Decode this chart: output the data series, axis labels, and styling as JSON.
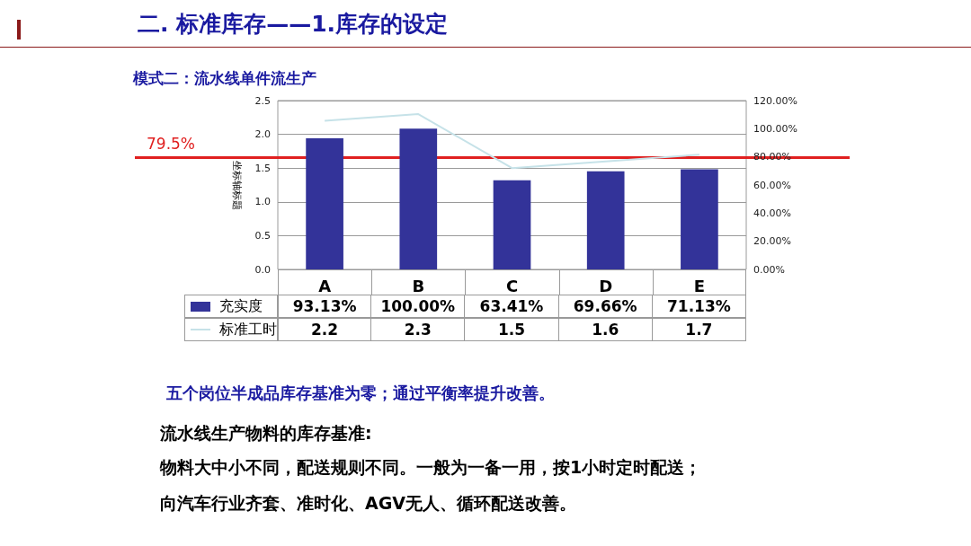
{
  "chart_data": {
    "type": "bar",
    "title": "二. 标准库存——1.库存的设定",
    "subtitle": "模式二：流水线单件流生产",
    "ylabel": "坐标轴标题",
    "categories": [
      "A",
      "B",
      "C",
      "D",
      "E"
    ],
    "series": [
      {
        "name": "充实度",
        "axis": "y2",
        "color": "#333399",
        "values": [
          93.13,
          100.0,
          63.41,
          69.66,
          71.13
        ],
        "value_labels": [
          "93.13%",
          "100.00%",
          "63.41%",
          "69.66%",
          "71.13%"
        ]
      },
      {
        "name": "标准工时",
        "type": "line",
        "color": "#c6e2e8",
        "values": [
          2.2,
          2.3,
          1.5,
          1.6,
          1.7
        ],
        "value_labels": [
          "2.2",
          "2.3",
          "1.5",
          "1.6",
          "1.7"
        ]
      }
    ],
    "ylim": [
      0,
      2.5
    ],
    "yticks": [
      {
        "value": 0,
        "label": "0.0"
      },
      {
        "value": 0.5,
        "label": "0.5"
      },
      {
        "value": 1,
        "label": "1.0"
      },
      {
        "value": 1.5,
        "label": "1.5"
      },
      {
        "value": 2,
        "label": "2.0"
      },
      {
        "value": 2.5,
        "label": "2.5"
      }
    ],
    "y2lim": [
      0,
      120
    ],
    "y2ticks": [
      {
        "value": 0,
        "label": "0.00%"
      },
      {
        "value": 20,
        "label": "20.00%"
      },
      {
        "value": 40,
        "label": "40.00%"
      },
      {
        "value": 60,
        "label": "60.00%"
      },
      {
        "value": 80,
        "label": "80.00%"
      },
      {
        "value": 100,
        "label": "100.00%"
      },
      {
        "value": 120,
        "label": "120.00%"
      }
    ],
    "ref_lines": [
      {
        "axis": "y2",
        "value": 79.5,
        "label": "79.5%",
        "color": "#e02020"
      }
    ],
    "grid": "y",
    "legend": "bottom",
    "marker": "none",
    "annotations": [
      "五个岗位半成品库存基准为零；通过平衡率提升改善。",
      "流水线生产物料的库存基准:",
      "物料大中小不同，配送规则不同。一般为一备一用，按1小时定时配送；",
      "向汽车行业齐套、准时化、AGV无人、循环配送改善。"
    ]
  }
}
